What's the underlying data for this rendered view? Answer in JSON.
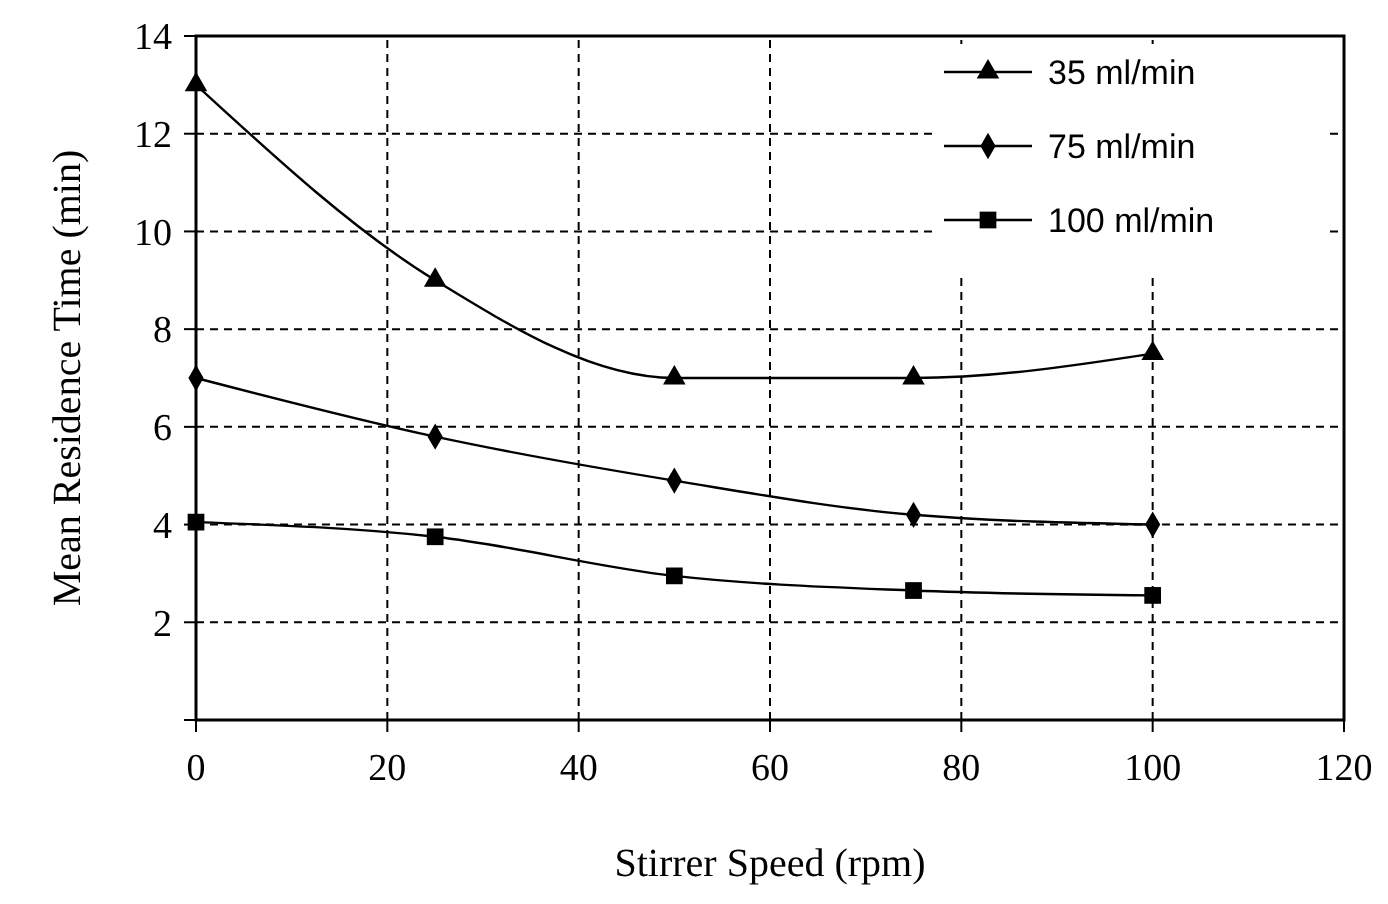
{
  "chart_data": {
    "type": "line",
    "xlabel": "Stirrer Speed (rpm)",
    "ylabel": "Mean Residence Time (min)",
    "x": [
      0,
      25,
      50,
      75,
      100
    ],
    "series": [
      {
        "name": "35 ml/min",
        "color": "#000000",
        "marker": "triangle",
        "values": [
          13,
          9,
          7,
          7,
          7.5
        ]
      },
      {
        "name": "75 ml/min",
        "color": "#000000",
        "marker": "diamond",
        "values": [
          7,
          5.8,
          4.9,
          4.2,
          4.0
        ]
      },
      {
        "name": "100 ml/min",
        "color": "#000000",
        "marker": "square",
        "values": [
          4.05,
          3.75,
          2.95,
          2.65,
          2.55
        ]
      }
    ],
    "xlim": [
      0,
      120
    ],
    "xticks": [
      0,
      20,
      40,
      60,
      80,
      100,
      120
    ],
    "ylim": [
      0,
      14
    ],
    "yticks": [
      {
        "value": 0,
        "label": null
      },
      2,
      4,
      6,
      8,
      10,
      12,
      14
    ],
    "grid": true,
    "legend": "top right",
    "line_style": "solid"
  }
}
